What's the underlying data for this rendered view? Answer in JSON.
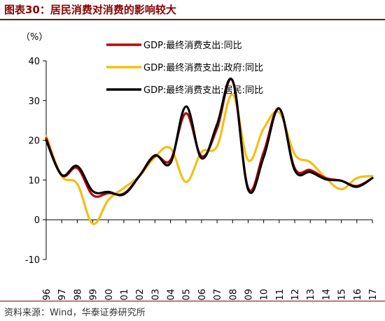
{
  "header": {
    "title": "图表30：居民消费对消费的影响较大"
  },
  "footer": {
    "source": "资料来源：Wind，华泰证券研究所"
  },
  "chart_data": {
    "type": "line",
    "ylabel": "（%）",
    "ylim": [
      -10,
      40
    ],
    "yticks": [
      -10,
      0,
      10,
      20,
      30,
      40
    ],
    "grid": false,
    "legend_position": "top-left",
    "categories": [
      "1996",
      "1997",
      "1998",
      "1999",
      "2000",
      "2001",
      "2002",
      "2003",
      "2004",
      "2005",
      "2006",
      "2007",
      "2008",
      "2009",
      "2010",
      "2011",
      "2012",
      "2013",
      "2014",
      "2015",
      "2016",
      "2017"
    ],
    "series": [
      {
        "name": "GDP:最终消费支出:同比",
        "color": "#c00000",
        "values": [
          20.5,
          11.2,
          13.0,
          6.2,
          6.7,
          6.6,
          11.0,
          16.0,
          15.0,
          26.8,
          16.0,
          23.0,
          35.0,
          8.0,
          17.0,
          28.0,
          13.0,
          12.5,
          10.5,
          9.8,
          8.5,
          10.5
        ]
      },
      {
        "name": "GDP:最终消费支出:政府:同比",
        "color": "#f2c012",
        "values": [
          21.0,
          11.0,
          9.0,
          -1.0,
          5.0,
          8.0,
          11.0,
          15.8,
          18.0,
          9.5,
          17.0,
          18.5,
          31.5,
          15.0,
          23.0,
          27.0,
          16.5,
          14.5,
          10.5,
          7.7,
          10.5,
          11.0
        ]
      },
      {
        "name": "GDP:最终消费支出:居民:同比",
        "color": "#000000",
        "values": [
          20.0,
          11.3,
          13.5,
          7.2,
          7.0,
          6.4,
          11.0,
          16.2,
          14.3,
          28.5,
          15.5,
          24.0,
          35.0,
          7.6,
          15.8,
          28.0,
          12.5,
          12.0,
          10.2,
          9.8,
          8.3,
          10.5
        ]
      }
    ]
  }
}
